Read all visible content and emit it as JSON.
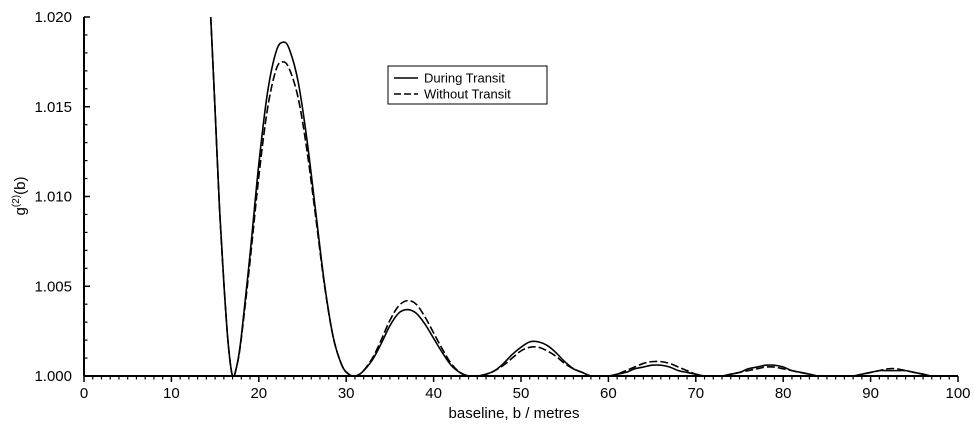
{
  "chart_data": {
    "type": "line",
    "title": "",
    "xlabel": "baseline, b / metres",
    "ylabel": "g(2)(b)",
    "ylabel_parts": {
      "base": "g",
      "sup": "(2)",
      "tail": "(b)"
    },
    "xlim": [
      0,
      100
    ],
    "ylim": [
      1.0,
      1.02
    ],
    "x_ticks": [
      0,
      10,
      20,
      30,
      40,
      50,
      60,
      70,
      80,
      90,
      100
    ],
    "x_tick_labels": [
      "0",
      "10",
      "20",
      "30",
      "40",
      "50",
      "60",
      "70",
      "80",
      "90",
      "100"
    ],
    "y_ticks": [
      1.0,
      1.005,
      1.01,
      1.015,
      1.02
    ],
    "y_tick_labels": [
      "1.000",
      "1.005",
      "1.010",
      "1.015",
      "1.020"
    ],
    "grid": false,
    "legend_position": "top-center",
    "series": [
      {
        "name": "During Transit",
        "style": "solid",
        "color": "#000000",
        "x": [
          14.5,
          15,
          15.5,
          16,
          16.5,
          17,
          17.5,
          18,
          19,
          20,
          21,
          22,
          22.8,
          23.5,
          24.5,
          25.5,
          26.5,
          27.5,
          28.5,
          29.5,
          30.3,
          31,
          31.8,
          33,
          34,
          35,
          36,
          37,
          38,
          39,
          40,
          41,
          42,
          43,
          44,
          45,
          46,
          47,
          48,
          49,
          50,
          51,
          52,
          53,
          54,
          55,
          56,
          57,
          58,
          59,
          60,
          61,
          62,
          63,
          64,
          65,
          66,
          67,
          68,
          69,
          70,
          71,
          72,
          73,
          74,
          75,
          76,
          77,
          78,
          79,
          80,
          81,
          82,
          83,
          84,
          85,
          86,
          87,
          88,
          89,
          90,
          91,
          92,
          93,
          94,
          95,
          96,
          97,
          98,
          99,
          100
        ],
        "y": [
          1.02,
          1.0148,
          1.0094,
          1.0052,
          1.0018,
          1.0,
          1.0006,
          1.0022,
          1.0068,
          1.0118,
          1.0158,
          1.0181,
          1.0186,
          1.0182,
          1.0164,
          1.0132,
          1.0092,
          1.0052,
          1.0022,
          1.0006,
          1.0001,
          1.0,
          1.0002,
          1.0009,
          1.0018,
          1.0028,
          1.0035,
          1.0037,
          1.0035,
          1.0029,
          1.0021,
          1.0013,
          1.0006,
          1.0002,
          1.0,
          1.0,
          1.0001,
          1.0003,
          1.0007,
          1.0012,
          1.0016,
          1.0019,
          1.0019,
          1.0017,
          1.0013,
          1.0008,
          1.0004,
          1.0002,
          1.0,
          1.0,
          1.0,
          1.0001,
          1.0002,
          1.0004,
          1.0005,
          1.0006,
          1.0006,
          1.0005,
          1.0003,
          1.0002,
          1.0001,
          1.0,
          1.0,
          1.0,
          1.0001,
          1.0002,
          1.0004,
          1.0005,
          1.0006,
          1.0006,
          1.0005,
          1.0003,
          1.0002,
          1.0001,
          1.0,
          1.0,
          1.0,
          1.0,
          1.0,
          1.0001,
          1.0002,
          1.0003,
          1.0003,
          1.0003,
          1.0003,
          1.0002,
          1.0001,
          1.0,
          1.0,
          1.0,
          1.0
        ]
      },
      {
        "name": "Without Transit",
        "style": "dashed",
        "color": "#000000",
        "x": [
          14.5,
          15,
          15.5,
          16,
          16.5,
          17,
          17.5,
          18,
          19,
          20,
          21,
          22,
          22.8,
          23.5,
          24.5,
          25.5,
          26.5,
          27.5,
          28.5,
          29.5,
          30.3,
          31,
          31.8,
          33,
          34,
          35,
          36,
          37,
          38,
          39,
          40,
          41,
          42,
          43,
          44,
          45,
          46,
          47,
          48,
          49,
          50,
          51,
          52,
          53,
          54,
          55,
          56,
          57,
          58,
          59,
          60,
          61,
          62,
          63,
          64,
          65,
          66,
          67,
          68,
          69,
          70,
          71,
          72,
          73,
          74,
          75,
          76,
          77,
          78,
          79,
          80,
          81,
          82,
          83,
          84,
          85,
          86,
          87,
          88,
          89,
          90,
          91,
          92,
          93,
          94,
          95,
          96,
          97,
          98,
          99,
          100
        ],
        "y": [
          1.02,
          1.0148,
          1.0094,
          1.0052,
          1.0018,
          1.0,
          1.0006,
          1.0021,
          1.0064,
          1.0111,
          1.0149,
          1.0171,
          1.0175,
          1.0171,
          1.0155,
          1.0126,
          1.0089,
          1.0051,
          1.0022,
          1.0006,
          1.0001,
          1.0,
          1.0002,
          1.001,
          1.002,
          1.0031,
          1.0039,
          1.0042,
          1.004,
          1.0033,
          1.0024,
          1.0015,
          1.0007,
          1.0002,
          1.0,
          1.0,
          1.0001,
          1.0003,
          1.0006,
          1.001,
          1.0014,
          1.0016,
          1.0016,
          1.0014,
          1.0011,
          1.0007,
          1.0004,
          1.0002,
          1.0,
          1.0,
          1.0,
          1.0001,
          1.0003,
          1.0005,
          1.0007,
          1.0008,
          1.0008,
          1.0007,
          1.0005,
          1.0003,
          1.0001,
          1.0,
          1.0,
          1.0,
          1.0001,
          1.0002,
          1.0003,
          1.0004,
          1.0005,
          1.0005,
          1.0004,
          1.0003,
          1.0002,
          1.0001,
          1.0,
          1.0,
          1.0,
          1.0,
          1.0,
          1.0001,
          1.0002,
          1.0003,
          1.0004,
          1.0004,
          1.0003,
          1.0002,
          1.0001,
          1.0,
          1.0,
          1.0,
          1.0
        ]
      }
    ]
  }
}
